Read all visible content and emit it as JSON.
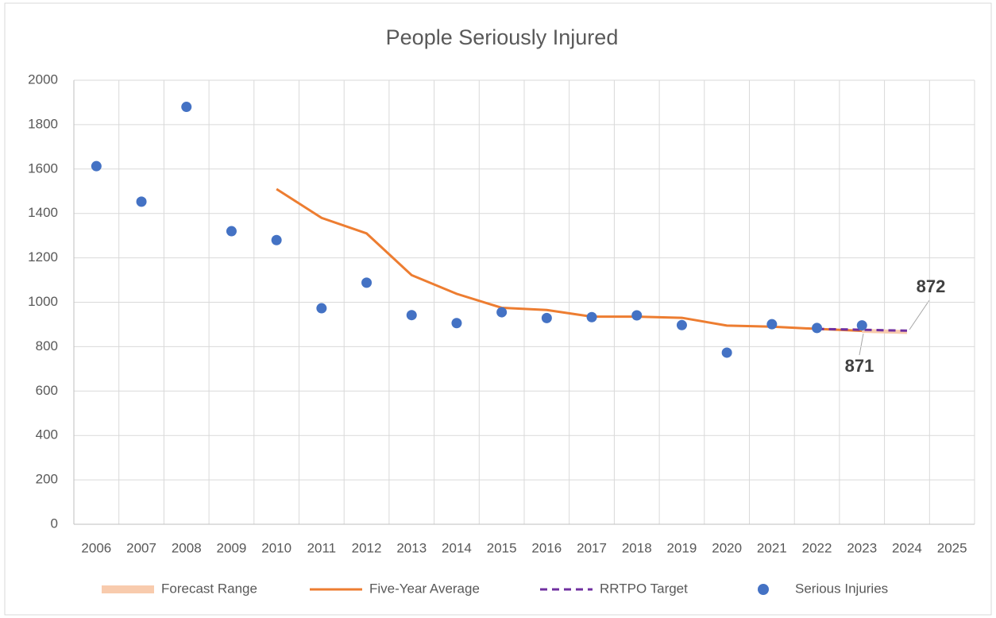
{
  "chart_data": {
    "type": "line",
    "title": "People Seriously Injured",
    "categories": [
      "2006",
      "2007",
      "2008",
      "2009",
      "2010",
      "2011",
      "2012",
      "2013",
      "2014",
      "2015",
      "2016",
      "2017",
      "2018",
      "2019",
      "2020",
      "2021",
      "2022",
      "2023",
      "2024",
      "2025"
    ],
    "series": [
      {
        "name": "Forecast Range",
        "color": "#f8cbad",
        "style": "band",
        "values": [
          null,
          null,
          null,
          null,
          null,
          null,
          null,
          null,
          null,
          null,
          null,
          null,
          null,
          null,
          null,
          null,
          null,
          871,
          866,
          null
        ]
      },
      {
        "name": "Five-Year Average",
        "color": "#ed7d31",
        "style": "line",
        "values": [
          null,
          null,
          null,
          null,
          1510,
          1380,
          1310,
          1122,
          1038,
          975,
          965,
          935,
          935,
          930,
          895,
          890,
          880,
          871,
          null,
          null
        ]
      },
      {
        "name": "RRTPO Target",
        "color": "#7030a0",
        "style": "dashed",
        "values": [
          null,
          null,
          null,
          null,
          null,
          null,
          null,
          null,
          null,
          null,
          null,
          null,
          null,
          null,
          null,
          null,
          880,
          876,
          872,
          null
        ]
      },
      {
        "name": "Serious Injuries",
        "color": "#4472c4",
        "style": "scatter",
        "values": [
          1613,
          1453,
          1880,
          1320,
          1280,
          973,
          1088,
          942,
          906,
          955,
          929,
          933,
          941,
          897,
          773,
          901,
          884,
          896,
          null,
          null
        ]
      }
    ],
    "ylim": [
      0,
      2000
    ],
    "yticks": [
      0,
      200,
      400,
      600,
      800,
      1000,
      1200,
      1400,
      1600,
      1800,
      2000
    ],
    "grid": true,
    "legend": "bottom"
  }
}
